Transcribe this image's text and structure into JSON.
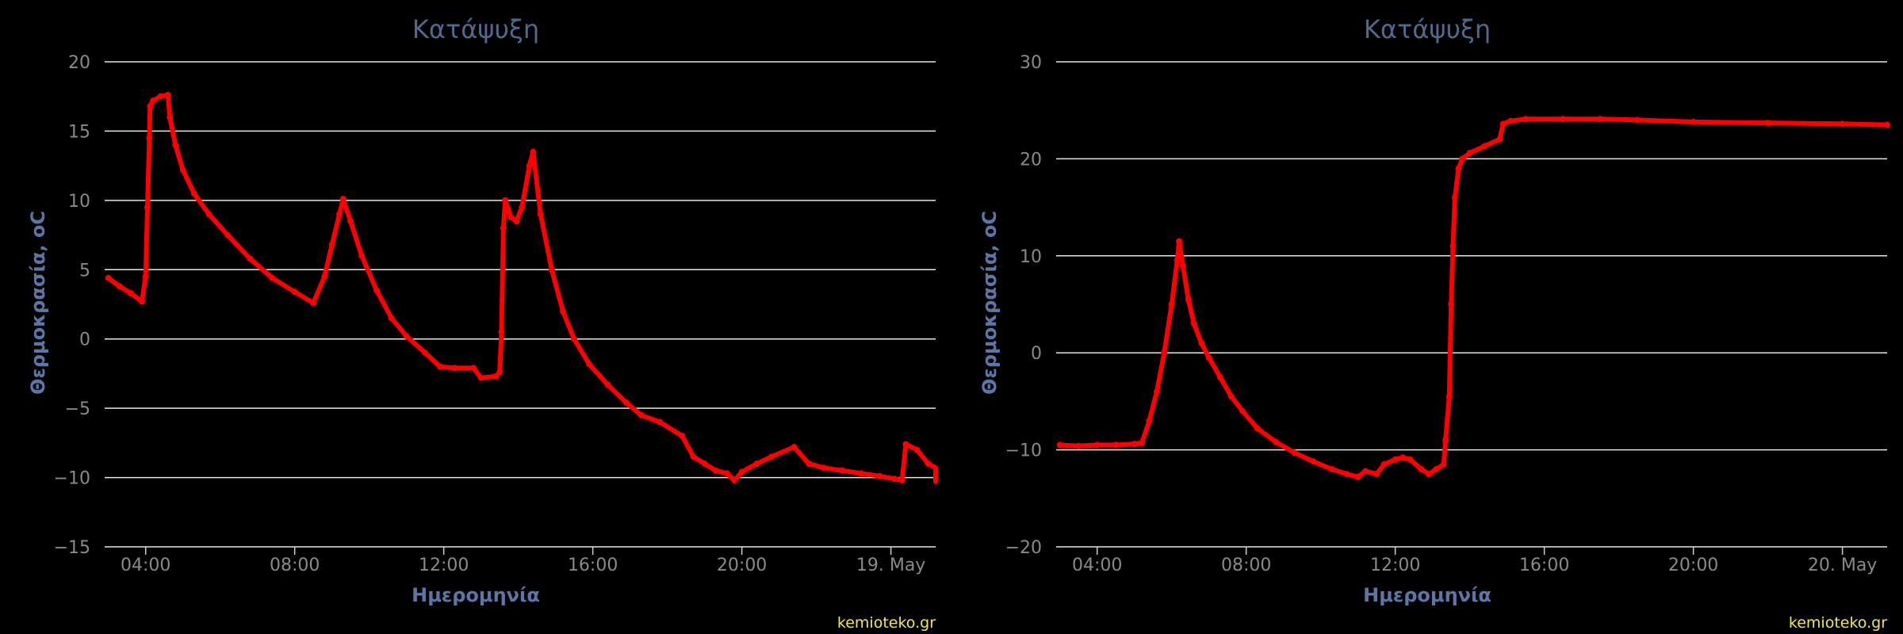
{
  "charts": [
    {
      "title": "Κατάψυξη",
      "xlabel": "Ημερομηνία",
      "ylabel": "Θερμοκρασία, oC",
      "credit": "kemioteko.gr",
      "yticks": [
        "20",
        "15",
        "10",
        "5",
        "0",
        "−5",
        "−10",
        "−15"
      ],
      "xticks": [
        "04:00",
        "08:00",
        "12:00",
        "16:00",
        "20:00",
        "19. May"
      ]
    },
    {
      "title": "Κατάψυξη",
      "xlabel": "Ημερομηνία",
      "ylabel": "Θερμοκρασία, oC",
      "credit": "kemioteko.gr",
      "yticks": [
        "30",
        "20",
        "10",
        "0",
        "−10",
        "−20"
      ],
      "xticks": [
        "04:00",
        "08:00",
        "12:00",
        "16:00",
        "20:00",
        "20. May"
      ]
    }
  ],
  "chart_data": [
    {
      "type": "line",
      "title": "Κατάψυξη",
      "xlabel": "Ημερομηνία",
      "ylabel": "Θερμοκρασία, oC",
      "x_unit": "hours since 00:00 of the day shown (ticks: 04:00 … 19. May)",
      "xlim": [
        2.9,
        25.2
      ],
      "ylim": [
        -15,
        20
      ],
      "y_tick_values": [
        20,
        15,
        10,
        5,
        0,
        -5,
        -10,
        -15
      ],
      "x_tick_values": [
        4,
        8,
        12,
        16,
        20,
        24
      ],
      "grid": true,
      "legend": "none",
      "color": "#ff0000",
      "series": [
        {
          "points": [
            [
              3.0,
              4.4
            ],
            [
              3.3,
              3.8
            ],
            [
              3.6,
              3.3
            ],
            [
              3.9,
              2.7
            ],
            [
              4.0,
              4.5
            ],
            [
              4.05,
              9.5
            ],
            [
              4.1,
              14.5
            ],
            [
              4.12,
              16.8
            ],
            [
              4.2,
              17.2
            ],
            [
              4.4,
              17.5
            ],
            [
              4.6,
              17.6
            ],
            [
              4.65,
              16.0
            ],
            [
              4.8,
              14.0
            ],
            [
              5.0,
              12.2
            ],
            [
              5.3,
              10.5
            ],
            [
              5.7,
              9.0
            ],
            [
              6.2,
              7.5
            ],
            [
              6.8,
              5.8
            ],
            [
              7.4,
              4.4
            ],
            [
              8.0,
              3.4
            ],
            [
              8.5,
              2.6
            ],
            [
              8.8,
              4.5
            ],
            [
              9.0,
              6.8
            ],
            [
              9.2,
              9.0
            ],
            [
              9.3,
              10.1
            ],
            [
              9.5,
              8.5
            ],
            [
              9.8,
              6.0
            ],
            [
              10.2,
              3.5
            ],
            [
              10.6,
              1.5
            ],
            [
              11.0,
              0.2
            ],
            [
              11.5,
              -1.0
            ],
            [
              11.9,
              -2.0
            ],
            [
              12.3,
              -2.1
            ],
            [
              12.8,
              -2.1
            ],
            [
              13.0,
              -2.8
            ],
            [
              13.4,
              -2.7
            ],
            [
              13.5,
              -2.4
            ],
            [
              13.55,
              0.5
            ],
            [
              13.6,
              8.0
            ],
            [
              13.65,
              10.0
            ],
            [
              13.8,
              8.8
            ],
            [
              13.95,
              8.5
            ],
            [
              14.1,
              9.5
            ],
            [
              14.3,
              12.5
            ],
            [
              14.4,
              13.5
            ],
            [
              14.6,
              9.0
            ],
            [
              14.9,
              5.0
            ],
            [
              15.2,
              2.0
            ],
            [
              15.5,
              0.0
            ],
            [
              15.9,
              -1.8
            ],
            [
              16.4,
              -3.3
            ],
            [
              16.9,
              -4.6
            ],
            [
              17.3,
              -5.5
            ],
            [
              17.8,
              -6.0
            ],
            [
              18.4,
              -7.0
            ],
            [
              18.7,
              -8.5
            ],
            [
              19.0,
              -9.0
            ],
            [
              19.3,
              -9.5
            ],
            [
              19.6,
              -9.7
            ],
            [
              19.8,
              -10.2
            ],
            [
              20.0,
              -9.6
            ],
            [
              20.4,
              -9.0
            ],
            [
              20.8,
              -8.5
            ],
            [
              21.4,
              -7.8
            ],
            [
              21.8,
              -9.0
            ],
            [
              22.2,
              -9.3
            ],
            [
              22.7,
              -9.5
            ],
            [
              23.2,
              -9.7
            ],
            [
              23.7,
              -9.9
            ],
            [
              24.1,
              -10.1
            ],
            [
              24.3,
              -10.2
            ],
            [
              24.4,
              -7.6
            ],
            [
              24.7,
              -8.0
            ],
            [
              25.0,
              -9.0
            ],
            [
              25.3,
              -9.3
            ],
            [
              25.8,
              -9.8
            ],
            [
              26.2,
              -10.0
            ],
            [
              26.5,
              -10.2
            ],
            [
              26.8,
              -10.3
            ],
            [
              27.0,
              -9.8
            ],
            [
              27.2,
              -9.6
            ]
          ]
        }
      ]
    },
    {
      "type": "line",
      "title": "Κατάψυξη",
      "xlabel": "Ημερομηνία",
      "ylabel": "Θερμοκρασία, oC",
      "x_unit": "hours since 00:00 of the day shown (ticks: 04:00 … 20. May)",
      "xlim": [
        2.9,
        25.2
      ],
      "ylim": [
        -20,
        30
      ],
      "y_tick_values": [
        30,
        20,
        10,
        0,
        -10,
        -20
      ],
      "x_tick_values": [
        4,
        8,
        12,
        16,
        20,
        24
      ],
      "grid": true,
      "legend": "none",
      "color": "#ff0000",
      "series": [
        {
          "points": [
            [
              3.0,
              -9.5
            ],
            [
              3.5,
              -9.6
            ],
            [
              4.0,
              -9.5
            ],
            [
              4.5,
              -9.5
            ],
            [
              5.0,
              -9.4
            ],
            [
              5.2,
              -9.3
            ],
            [
              5.4,
              -7.0
            ],
            [
              5.6,
              -4.0
            ],
            [
              5.8,
              0.0
            ],
            [
              6.0,
              5.0
            ],
            [
              6.15,
              9.5
            ],
            [
              6.2,
              11.5
            ],
            [
              6.3,
              9.0
            ],
            [
              6.45,
              5.5
            ],
            [
              6.6,
              3.0
            ],
            [
              6.8,
              1.0
            ],
            [
              7.0,
              -0.5
            ],
            [
              7.3,
              -2.5
            ],
            [
              7.6,
              -4.5
            ],
            [
              7.9,
              -6.0
            ],
            [
              8.3,
              -7.8
            ],
            [
              8.8,
              -9.2
            ],
            [
              9.3,
              -10.3
            ],
            [
              9.8,
              -11.2
            ],
            [
              10.3,
              -12.0
            ],
            [
              10.7,
              -12.5
            ],
            [
              11.0,
              -12.8
            ],
            [
              11.2,
              -12.2
            ],
            [
              11.5,
              -12.5
            ],
            [
              11.7,
              -11.5
            ],
            [
              12.0,
              -11.0
            ],
            [
              12.2,
              -10.8
            ],
            [
              12.4,
              -11.0
            ],
            [
              12.7,
              -12.0
            ],
            [
              12.9,
              -12.5
            ],
            [
              13.1,
              -12.0
            ],
            [
              13.3,
              -11.5
            ],
            [
              13.35,
              -9.0
            ],
            [
              13.45,
              -4.5
            ],
            [
              13.5,
              5.0
            ],
            [
              13.55,
              11.0
            ],
            [
              13.6,
              16.0
            ],
            [
              13.7,
              19.0
            ],
            [
              13.8,
              20.0
            ],
            [
              14.0,
              20.6
            ],
            [
              14.4,
              21.3
            ],
            [
              14.8,
              22.0
            ],
            [
              14.9,
              23.6
            ],
            [
              15.1,
              23.9
            ],
            [
              15.5,
              24.1
            ],
            [
              16.5,
              24.1
            ],
            [
              17.5,
              24.1
            ],
            [
              18.5,
              24.0
            ],
            [
              20.0,
              23.8
            ],
            [
              22.0,
              23.7
            ],
            [
              24.0,
              23.6
            ],
            [
              25.2,
              23.5
            ]
          ]
        }
      ]
    }
  ]
}
